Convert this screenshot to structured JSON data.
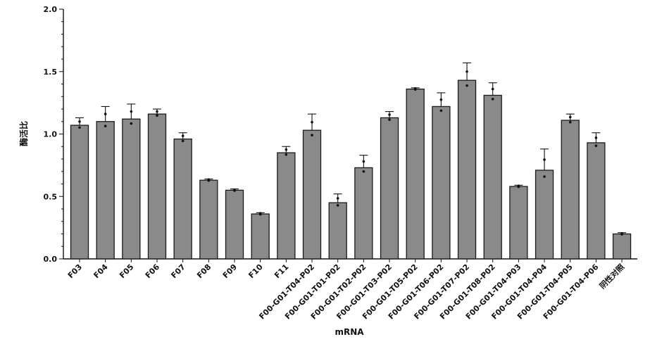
{
  "chart_data": {
    "type": "bar",
    "title": "",
    "xlabel": "mRNA",
    "ylabel": "酶活比",
    "ylim": [
      0,
      2.0
    ],
    "yticks": [
      "0.0",
      "0.5",
      "1.0",
      "1.5",
      "2.0"
    ],
    "grid": false,
    "categories": [
      "F03",
      "F04",
      "F05",
      "F06",
      "F07",
      "F08",
      "F09",
      "F10",
      "F11",
      "F00-G01-T04-P02",
      "F00-G01-T01-P02",
      "F00-G01-T02-P02",
      "F00-G01-T03-P02",
      "F00-G01-T05-P02",
      "F00-G01-T06-P02",
      "F00-G01-T07-P02",
      "F00-G01-T08-P02",
      "F00-G01-T04-P03",
      "F00-G01-T04-P04",
      "F00-G01-T04-P05",
      "F00-G01-T04-P06",
      "阴性对照"
    ],
    "values": [
      1.07,
      1.1,
      1.12,
      1.16,
      0.96,
      0.63,
      0.55,
      0.36,
      0.85,
      1.03,
      0.45,
      0.73,
      1.13,
      1.36,
      1.22,
      1.43,
      1.31,
      0.58,
      0.71,
      1.11,
      0.93,
      0.2
    ],
    "errors": [
      0.06,
      0.12,
      0.12,
      0.04,
      0.05,
      0.01,
      0.01,
      0.01,
      0.05,
      0.13,
      0.07,
      0.1,
      0.05,
      0.01,
      0.11,
      0.14,
      0.1,
      0.01,
      0.17,
      0.05,
      0.08,
      0.01
    ],
    "bar_color": "#8a8a8a",
    "edge_color": "#1a1a1a"
  }
}
